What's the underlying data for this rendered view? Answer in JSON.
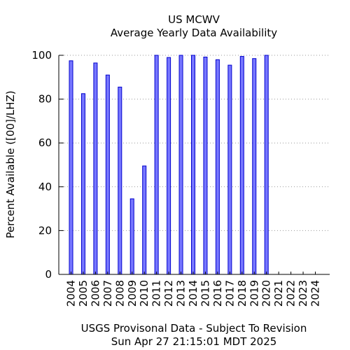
{
  "chart_data": {
    "type": "bar",
    "title": "US MCWV",
    "subtitle": "Average Yearly Data Availability",
    "ylabel": "Percent Available ([00]/LHZ)",
    "xlabel": "",
    "footer_line1": "USGS Provisonal Data - Subject To Revision",
    "footer_line2": "Sun Apr 27 21:15:01 MDT 2025",
    "categories": [
      "2004",
      "2005",
      "2006",
      "2007",
      "2008",
      "2009",
      "2010",
      "2011",
      "2012",
      "2013",
      "2014",
      "2015",
      "2016",
      "2017",
      "2018",
      "2019",
      "2020",
      "2021",
      "2022",
      "2023",
      "2024"
    ],
    "values": [
      97.5,
      82.5,
      96.5,
      91,
      85.5,
      34.5,
      49.5,
      100,
      99,
      100,
      100,
      99.2,
      98,
      95.5,
      99.5,
      98.5,
      100,
      0,
      0,
      0,
      0
    ],
    "ylim": [
      0,
      100
    ],
    "yticks": [
      0,
      20,
      40,
      60,
      80,
      100
    ],
    "grid": true,
    "bar_fill": "#7777ff",
    "bar_stroke": "#0000cc",
    "grid_color": "#999999"
  }
}
